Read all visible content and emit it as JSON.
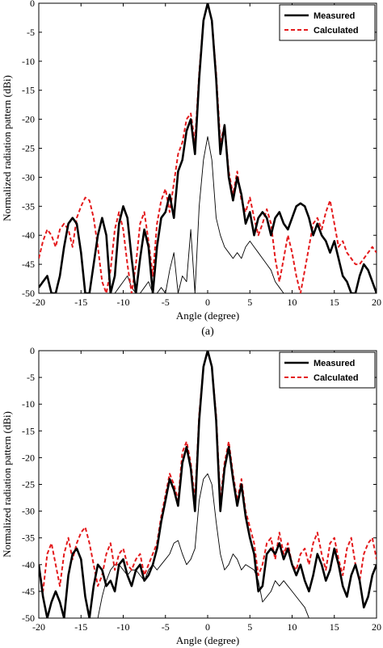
{
  "chart_data": [
    {
      "type": "line",
      "xlabel": "Angle (degree)",
      "ylabel": "Normalized radiation pattern (dBi)",
      "caption": "(a)",
      "xlim": [
        -20,
        20
      ],
      "ylim": [
        -50,
        0
      ],
      "xticks": [
        -20,
        -15,
        -10,
        -5,
        0,
        5,
        10,
        15,
        20
      ],
      "yticks": [
        0,
        -5,
        -10,
        -15,
        -20,
        -25,
        -30,
        -35,
        -40,
        -45,
        -50
      ],
      "grid": false,
      "legend_position": "top-right",
      "series": [
        {
          "name": "Measured",
          "color": "#000000",
          "style": "solid",
          "x": [
            -20,
            -19.5,
            -19,
            -18.5,
            -18,
            -17.5,
            -17,
            -16.5,
            -16,
            -15.5,
            -15,
            -14.5,
            -14,
            -13.5,
            -13,
            -12.5,
            -12,
            -11.5,
            -11,
            -10.5,
            -10,
            -9.5,
            -9,
            -8.5,
            -8,
            -7.5,
            -7,
            -6.5,
            -6,
            -5.5,
            -5,
            -4.5,
            -4,
            -3.5,
            -3,
            -2.5,
            -2,
            -1.5,
            -1,
            -0.5,
            0,
            0.5,
            1,
            1.5,
            2,
            2.5,
            3,
            3.5,
            4,
            4.5,
            5,
            5.5,
            6,
            6.5,
            7,
            7.5,
            8,
            8.5,
            9,
            9.5,
            10,
            10.5,
            11,
            11.5,
            12,
            12.5,
            13,
            13.5,
            14,
            14.5,
            15,
            15.5,
            16,
            16.5,
            17,
            17.5,
            18,
            18.5,
            19,
            19.5,
            20
          ],
          "y": [
            -49,
            -48,
            -47,
            -50,
            -50,
            -47,
            -42,
            -38,
            -37,
            -38,
            -43,
            -50,
            -50,
            -45,
            -40,
            -37,
            -40,
            -50,
            -47,
            -38,
            -35,
            -37,
            -44,
            -50,
            -44,
            -39,
            -42,
            -50,
            -42,
            -37,
            -36,
            -33,
            -37,
            -29,
            -27,
            -22,
            -20,
            -26,
            -13,
            -3,
            0,
            -3,
            -13,
            -26,
            -21,
            -30,
            -34,
            -30,
            -33,
            -38,
            -36,
            -40,
            -37,
            -36,
            -37,
            -40,
            -37,
            -36,
            -38,
            -39,
            -37,
            -35,
            -34.5,
            -35,
            -37,
            -40,
            -38,
            -40,
            -41,
            -43,
            -41,
            -44,
            -47,
            -48,
            -50,
            -50,
            -47,
            -45,
            -46,
            -48,
            -50
          ]
        },
        {
          "name": "Calculated",
          "color": "#e41a1c",
          "style": "dashed",
          "x": [
            -20,
            -19.5,
            -19,
            -18.5,
            -18,
            -17.5,
            -17,
            -16.5,
            -16,
            -15.5,
            -15,
            -14.5,
            -14,
            -13.5,
            -13,
            -12.5,
            -12,
            -11.5,
            -11,
            -10.5,
            -10,
            -9.5,
            -9,
            -8.5,
            -8,
            -7.5,
            -7,
            -6.5,
            -6,
            -5.5,
            -5,
            -4.5,
            -4,
            -3.5,
            -3,
            -2.5,
            -2,
            -1.5,
            -1,
            -0.5,
            0,
            0.5,
            1,
            1.5,
            2,
            2.5,
            3,
            3.5,
            4,
            4.5,
            5,
            5.5,
            6,
            6.5,
            7,
            7.5,
            8,
            8.5,
            9,
            9.5,
            10,
            10.5,
            11,
            11.5,
            12,
            12.5,
            13,
            13.5,
            14,
            14.5,
            15,
            15.5,
            16,
            16.5,
            17,
            17.5,
            18,
            18.5,
            19,
            19.5,
            20
          ],
          "y": [
            -44,
            -41,
            -39,
            -40,
            -42,
            -39,
            -38,
            -39,
            -42,
            -37,
            -35,
            -33.5,
            -34,
            -37,
            -42,
            -48,
            -50,
            -46,
            -39,
            -36,
            -39,
            -45,
            -50,
            -45,
            -38,
            -36,
            -41,
            -47,
            -38,
            -34,
            -32,
            -36,
            -31,
            -26,
            -24,
            -20,
            -19,
            -24,
            -12,
            -3,
            0,
            -3,
            -12,
            -24,
            -21,
            -29,
            -33,
            -29,
            -34,
            -36,
            -33.5,
            -37,
            -40,
            -38,
            -35.5,
            -38,
            -44,
            -48,
            -44,
            -40,
            -43,
            -47,
            -50,
            -46,
            -42,
            -38,
            -37,
            -39,
            -36,
            -34,
            -38,
            -42,
            -41,
            -43,
            -44,
            -45,
            -45,
            -44,
            -43,
            -42,
            -43
          ]
        },
        {
          "name": "",
          "color": "#000000",
          "style": "solid-thin",
          "x": [
            -11,
            -10.5,
            -10,
            -9.5,
            -9,
            -8.5,
            -8,
            -7.5,
            -7,
            -6.5,
            -6,
            -5.5,
            -5,
            -4.5,
            -4,
            -3.5,
            -3,
            -2.5,
            -2,
            -1.5,
            -1,
            -0.5,
            0,
            0.5,
            1,
            1.5,
            2,
            2.5,
            3,
            3.5,
            4,
            4.5,
            5,
            5.5,
            6,
            6.5,
            7,
            7.5,
            8,
            8.5,
            9
          ],
          "y": [
            -50,
            -49,
            -48,
            -47,
            -49,
            -50,
            -50,
            -49,
            -48,
            -50,
            -50,
            -49,
            -50,
            -46,
            -43,
            -50,
            -47,
            -48,
            -39,
            -50,
            -35,
            -27,
            -23,
            -27,
            -37,
            -40,
            -42,
            -43,
            -44,
            -43,
            -44,
            -42,
            -41,
            -42,
            -43,
            -44,
            -45,
            -46,
            -48,
            -49,
            -50
          ]
        }
      ]
    },
    {
      "type": "line",
      "xlabel": "Angle (degree)",
      "ylabel": "Normalized radiation pattern (dBi)",
      "caption": "(b)",
      "xlim": [
        -20,
        20
      ],
      "ylim": [
        -50,
        0
      ],
      "xticks": [
        -20,
        -15,
        -10,
        -5,
        0,
        5,
        10,
        15,
        20
      ],
      "yticks": [
        0,
        -5,
        -10,
        -15,
        -20,
        -25,
        -30,
        -35,
        -40,
        -45,
        -50
      ],
      "grid": false,
      "legend_position": "top-right",
      "series": [
        {
          "name": "Measured",
          "color": "#000000",
          "style": "solid",
          "x": [
            -20,
            -19.5,
            -19,
            -18.5,
            -18,
            -17.5,
            -17,
            -16.5,
            -16,
            -15.5,
            -15,
            -14.5,
            -14,
            -13.5,
            -13,
            -12.5,
            -12,
            -11.5,
            -11,
            -10.5,
            -10,
            -9.5,
            -9,
            -8.5,
            -8,
            -7.5,
            -7,
            -6.5,
            -6,
            -5.5,
            -5,
            -4.5,
            -4,
            -3.5,
            -3,
            -2.5,
            -2,
            -1.5,
            -1,
            -0.5,
            0,
            0.5,
            1,
            1.5,
            2,
            2.5,
            3,
            3.5,
            4,
            4.5,
            5,
            5.5,
            6,
            6.5,
            7,
            7.5,
            8,
            8.5,
            9,
            9.5,
            10,
            10.5,
            11,
            11.5,
            12,
            12.5,
            13,
            13.5,
            14,
            14.5,
            15,
            15.5,
            16,
            16.5,
            17,
            17.5,
            18,
            18.5,
            19,
            19.5,
            20
          ],
          "y": [
            -40,
            -46,
            -50,
            -47,
            -45,
            -47,
            -50,
            -42,
            -38,
            -37,
            -39,
            -46,
            -50,
            -44,
            -40,
            -41,
            -44,
            -43,
            -45,
            -40,
            -39,
            -42,
            -44,
            -41,
            -40,
            -43,
            -42,
            -40,
            -37,
            -32,
            -28,
            -24,
            -26,
            -29,
            -21,
            -18,
            -22,
            -30,
            -13,
            -3,
            0,
            -3,
            -13,
            -30,
            -22,
            -18,
            -24,
            -29,
            -25,
            -31,
            -35,
            -38,
            -45,
            -44,
            -38,
            -37,
            -38,
            -36,
            -39,
            -37,
            -40,
            -42,
            -40,
            -43,
            -45,
            -42,
            -38,
            -40,
            -43,
            -41,
            -37,
            -40,
            -44,
            -46,
            -42,
            -40,
            -43,
            -48,
            -46,
            -42,
            -40
          ]
        },
        {
          "name": "Calculated",
          "color": "#e41a1c",
          "style": "dashed",
          "x": [
            -20,
            -19.5,
            -19,
            -18.5,
            -18,
            -17.5,
            -17,
            -16.5,
            -16,
            -15.5,
            -15,
            -14.5,
            -14,
            -13.5,
            -13,
            -12.5,
            -12,
            -11.5,
            -11,
            -10.5,
            -10,
            -9.5,
            -9,
            -8.5,
            -8,
            -7.5,
            -7,
            -6.5,
            -6,
            -5.5,
            -5,
            -4.5,
            -4,
            -3.5,
            -3,
            -2.5,
            -2,
            -1.5,
            -1,
            -0.5,
            0,
            0.5,
            1,
            1.5,
            2,
            2.5,
            3,
            3.5,
            4,
            4.5,
            5,
            5.5,
            6,
            6.5,
            7,
            7.5,
            8,
            8.5,
            9,
            9.5,
            10,
            10.5,
            11,
            11.5,
            12,
            12.5,
            13,
            13.5,
            14,
            14.5,
            15,
            15.5,
            16,
            16.5,
            17,
            17.5,
            18,
            18.5,
            19,
            19.5,
            20
          ],
          "y": [
            -40,
            -45,
            -38,
            -36,
            -40,
            -44,
            -38,
            -35,
            -39,
            -36,
            -34,
            -33,
            -36,
            -40,
            -44,
            -42,
            -38,
            -36,
            -41,
            -38,
            -37,
            -40,
            -41,
            -39,
            -38,
            -42,
            -40,
            -38,
            -36,
            -31,
            -27,
            -23,
            -25,
            -28,
            -19,
            -17,
            -21,
            -28,
            -12,
            -3,
            0,
            -3,
            -12,
            -28,
            -21,
            -17,
            -23,
            -28,
            -24,
            -30,
            -33,
            -36,
            -42,
            -40,
            -36,
            -35,
            -39,
            -34,
            -38,
            -36,
            -40,
            -41,
            -38,
            -37,
            -40,
            -36,
            -34,
            -38,
            -41,
            -36,
            -35,
            -39,
            -42,
            -37,
            -35,
            -40,
            -43,
            -38,
            -36,
            -35,
            -39
          ]
        },
        {
          "name": "",
          "color": "#000000",
          "style": "solid-thin",
          "x": [
            -18.5,
            -18,
            -17.5,
            -17,
            -16.5,
            -16,
            -15.5,
            -15,
            -14.5,
            -14,
            -13.5,
            -13,
            -12.5,
            -12,
            -11.5,
            -11,
            -10.5,
            -10,
            -9.5,
            -9,
            -8.5,
            -8,
            -7.5,
            -7,
            -6.5,
            -6,
            -5.5,
            -5,
            -4.5,
            -4,
            -3.5,
            -3,
            -2.5,
            -2,
            -1.5,
            -1,
            -0.5,
            0,
            0.5,
            1,
            1.5,
            2,
            2.5,
            3,
            3.5,
            4,
            4.5,
            5,
            5.5,
            6,
            6.5,
            7,
            7.5,
            8,
            8.5,
            9,
            9.5,
            10,
            10.5,
            11,
            11.5,
            12
          ],
          "y": [
            -50,
            -50,
            -50,
            -50,
            -50,
            -50,
            -50,
            -50,
            -50,
            -50,
            -50,
            -50,
            -46,
            -43,
            -41,
            -40,
            -40,
            -41,
            -42,
            -41,
            -41,
            -42,
            -43,
            -41,
            -40,
            -41,
            -40,
            -39,
            -38,
            -36,
            -35.5,
            -38,
            -40,
            -39,
            -37,
            -28,
            -24,
            -23,
            -25,
            -32,
            -38,
            -41,
            -40,
            -38,
            -39,
            -41,
            -40,
            -40.5,
            -41,
            -43,
            -47,
            -46,
            -45,
            -43,
            -44,
            -43,
            -44,
            -45,
            -46,
            -47,
            -48,
            -50
          ]
        }
      ]
    }
  ]
}
